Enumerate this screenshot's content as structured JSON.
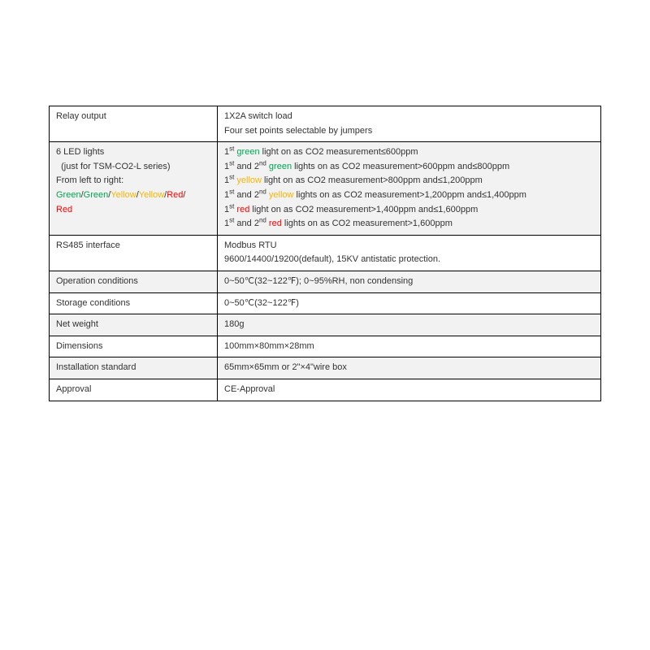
{
  "colors": {
    "green": "#00a651",
    "yellow": "#f7b500",
    "red": "#ff0000",
    "shade_bg": "#f2f2f2",
    "border": "#000000",
    "text": "#333333"
  },
  "table": {
    "rows": [
      {
        "label_parts": [
          {
            "t": "Relay output"
          }
        ],
        "value_lines": [
          [
            {
              "t": "1X2A switch load"
            }
          ],
          [
            {
              "t": "Four set points selectable by jumpers"
            }
          ]
        ],
        "shaded": false
      },
      {
        "label_parts": [
          {
            "t": "6 LED lights"
          },
          {
            "br": true
          },
          {
            "t": "  (just for TSM-CO2-L series)"
          },
          {
            "br": true
          },
          {
            "t": "From left to right:"
          },
          {
            "br": true
          },
          {
            "t": "Green",
            "c": "green"
          },
          {
            "t": "/"
          },
          {
            "t": "Green",
            "c": "green"
          },
          {
            "t": "/"
          },
          {
            "t": "Yellow",
            "c": "yellow"
          },
          {
            "t": "/"
          },
          {
            "t": "Yellow",
            "c": "yellow"
          },
          {
            "t": "/"
          },
          {
            "t": "Red",
            "c": "red"
          },
          {
            "t": "/"
          },
          {
            "br": true
          },
          {
            "t": "Red",
            "c": "red"
          }
        ],
        "value_lines": [
          [
            {
              "t": "1"
            },
            {
              "t": "st",
              "sup": true
            },
            {
              "t": " "
            },
            {
              "t": "green",
              "c": "green"
            },
            {
              "t": " light on as CO2 measurement≤600ppm"
            }
          ],
          [
            {
              "t": "1"
            },
            {
              "t": "st",
              "sup": true
            },
            {
              "t": " and 2"
            },
            {
              "t": "nd",
              "sup": true
            },
            {
              "t": " "
            },
            {
              "t": "green",
              "c": "green"
            },
            {
              "t": " lights on as CO2 measurement>600ppm and≤800ppm"
            }
          ],
          [
            {
              "t": "1"
            },
            {
              "t": "st",
              "sup": true
            },
            {
              "t": " "
            },
            {
              "t": "yellow",
              "c": "yellow"
            },
            {
              "t": " light on as CO2 measurement>800ppm and≤1,200ppm"
            }
          ],
          [
            {
              "t": "1"
            },
            {
              "t": "st",
              "sup": true
            },
            {
              "t": " and 2"
            },
            {
              "t": "nd",
              "sup": true
            },
            {
              "t": " "
            },
            {
              "t": "yellow",
              "c": "yellow"
            },
            {
              "t": " lights on as CO2 measurement>1,200ppm and≤1,400ppm"
            }
          ],
          [
            {
              "t": "1"
            },
            {
              "t": "st",
              "sup": true
            },
            {
              "t": " "
            },
            {
              "t": "red",
              "c": "red"
            },
            {
              "t": " light on as CO2 measurement>1,400ppm and≤1,600ppm"
            }
          ],
          [
            {
              "t": "1"
            },
            {
              "t": "st",
              "sup": true
            },
            {
              "t": " and 2"
            },
            {
              "t": "nd",
              "sup": true
            },
            {
              "t": " "
            },
            {
              "t": "red",
              "c": "red"
            },
            {
              "t": " lights on as CO2 measurement>1,600ppm"
            }
          ]
        ],
        "shaded": true
      },
      {
        "label_parts": [
          {
            "t": "RS485 interface"
          }
        ],
        "value_lines": [
          [
            {
              "t": "Modbus RTU"
            }
          ],
          [
            {
              "t": "9600/14400/19200(default), 15KV antistatic protection."
            }
          ]
        ],
        "shaded": false
      },
      {
        "label_parts": [
          {
            "t": "Operation conditions"
          }
        ],
        "value_lines": [
          [
            {
              "t": "0~50℃(32~122℉); 0~95%RH, non condensing"
            }
          ]
        ],
        "shaded": true
      },
      {
        "label_parts": [
          {
            "t": "Storage conditions"
          }
        ],
        "value_lines": [
          [
            {
              "t": "0~50℃(32~122℉)"
            }
          ]
        ],
        "shaded": false
      },
      {
        "label_parts": [
          {
            "t": "Net weight"
          }
        ],
        "value_lines": [
          [
            {
              "t": "180g"
            }
          ]
        ],
        "shaded": true
      },
      {
        "label_parts": [
          {
            "t": "Dimensions"
          }
        ],
        "value_lines": [
          [
            {
              "t": "100mm×80mm×28mm"
            }
          ]
        ],
        "shaded": false
      },
      {
        "label_parts": [
          {
            "t": "Installation standard"
          }
        ],
        "value_lines": [
          [
            {
              "t": "65mm×65mm or 2\"×4\"wire box"
            }
          ]
        ],
        "shaded": true
      },
      {
        "label_parts": [
          {
            "t": "Approval"
          }
        ],
        "value_lines": [
          [
            {
              "t": "CE-Approval"
            }
          ]
        ],
        "shaded": false
      }
    ]
  }
}
